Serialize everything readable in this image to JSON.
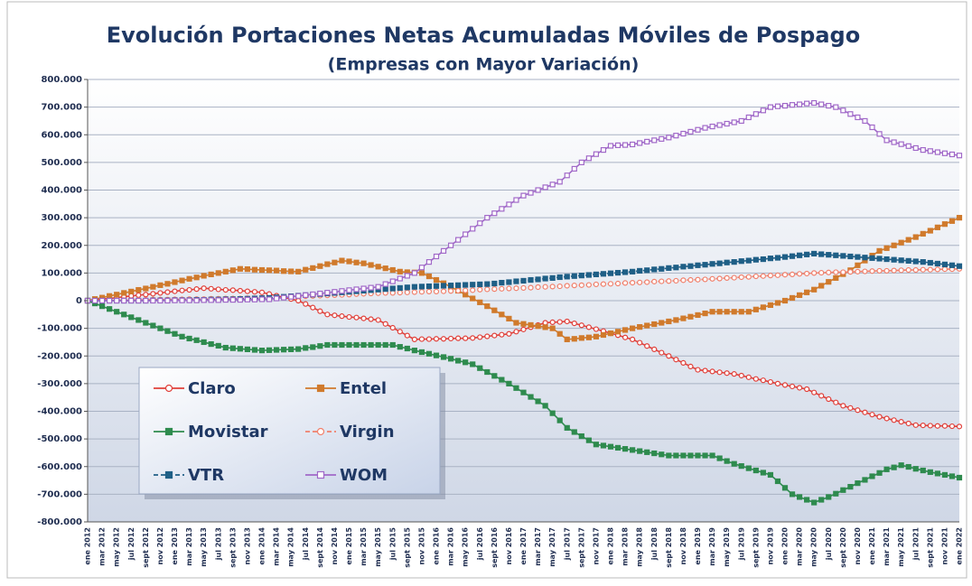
{
  "chart_data": {
    "type": "line",
    "title": "Evolución Portaciones Netas Acumuladas Móviles de Pospago",
    "subtitle": "(Empresas con Mayor Variación)",
    "categories": [
      "ene 2012",
      null,
      "mar 2012",
      null,
      "may 2012",
      null,
      "jul 2012",
      null,
      "sept 2012",
      null,
      "nov 2012",
      null,
      "ene 2013",
      null,
      "mar 2013",
      null,
      "may 2013",
      null,
      "jul 2013",
      null,
      "sept 2013",
      null,
      "nov 2013",
      null,
      "ene 2014",
      null,
      "mar 2014",
      null,
      "may 2014",
      null,
      "jul 2014",
      null,
      "sept 2014",
      null,
      "nov 2014",
      null,
      "ene 2015",
      null,
      "mar 2015",
      null,
      "may 2015",
      null,
      "jul 2015",
      null,
      "sept 2015",
      null,
      "nov 2015",
      null,
      "ene 2016",
      null,
      "mar 2016",
      null,
      "may 2016",
      null,
      "jul 2016",
      null,
      "sept 2016",
      null,
      "nov 2016",
      null,
      "ene 2017",
      null,
      "mar 2017",
      null,
      "may 2017",
      null,
      "jul 2017",
      null,
      "sept 2017",
      null,
      "nov 2017",
      null,
      "ene 2018",
      null,
      "mar 2018",
      null,
      "may 2018",
      null,
      "jul 2018",
      null,
      "sept 2018",
      null,
      "nov 2018",
      null,
      "ene 2019",
      null,
      "mar 2019",
      null,
      "may 2019",
      null,
      "jul 2019",
      null,
      "sept 2019",
      null,
      "nov 2019",
      null,
      "ene 2020",
      null,
      "mar 2020",
      null,
      "may 2020",
      null,
      "jul 2020",
      null,
      "sept 2020",
      null,
      "nov 2020",
      null,
      "ene 2021",
      null,
      "mar 2021",
      null,
      "may 2021",
      null,
      "jul 2021",
      null,
      "sept 2021",
      null,
      "nov 2021",
      null,
      "ene 2022"
    ],
    "ylim": [
      -800000,
      800000
    ],
    "yticks": [
      {
        "value": 800000,
        "label": "800.000"
      },
      {
        "value": 700000,
        "label": "700.000"
      },
      {
        "value": 600000,
        "label": "600.000"
      },
      {
        "value": 500000,
        "label": "500.000"
      },
      {
        "value": 400000,
        "label": "400.000"
      },
      {
        "value": 300000,
        "label": "300.000"
      },
      {
        "value": 200000,
        "label": "200.000"
      },
      {
        "value": 100000,
        "label": "100.000"
      },
      0,
      {
        "value": -100000,
        "label": "-100.000"
      },
      {
        "value": -200000,
        "label": "-200.000"
      },
      {
        "value": -300000,
        "label": "-300.000"
      },
      {
        "value": -400000,
        "label": "-400.000"
      },
      {
        "value": -500000,
        "label": "-500.000"
      },
      {
        "value": -600000,
        "label": "-600.000"
      },
      {
        "value": -700000,
        "label": "-700.000"
      },
      {
        "value": -800000,
        "label": "-800.000"
      }
    ],
    "grid": true,
    "series": [
      {
        "name": "Claro",
        "color": "#e0403a",
        "marker": "open-circle",
        "dash": false,
        "values": [
          0,
          3000,
          6000,
          8000,
          11000,
          14000,
          17000,
          20000,
          22000,
          25000,
          28000,
          31000,
          34000,
          37000,
          39000,
          42000,
          45000,
          43000,
          41000,
          39000,
          38000,
          36000,
          34000,
          32000,
          30000,
          24000,
          18000,
          12000,
          6000,
          0,
          -12000,
          -25000,
          -38000,
          -50000,
          -53000,
          -56000,
          -59000,
          -61000,
          -64000,
          -67000,
          -70000,
          -84000,
          -98000,
          -112000,
          -126000,
          -140000,
          -139000,
          -139000,
          -138000,
          -138000,
          -137000,
          -136000,
          -136000,
          -135000,
          -132000,
          -129000,
          -126000,
          -123000,
          -120000,
          -112000,
          -104000,
          -96000,
          -88000,
          -80000,
          -78000,
          -77000,
          -75000,
          -82000,
          -89000,
          -96000,
          -103000,
          -110000,
          -118000,
          -125000,
          -133000,
          -140000,
          -152000,
          -164000,
          -176000,
          -188000,
          -200000,
          -213000,
          -225000,
          -238000,
          -250000,
          -253000,
          -256000,
          -259000,
          -262000,
          -265000,
          -271000,
          -277000,
          -283000,
          -288000,
          -294000,
          -300000,
          -305000,
          -310000,
          -315000,
          -320000,
          -332000,
          -344000,
          -356000,
          -368000,
          -380000,
          -388000,
          -396000,
          -404000,
          -412000,
          -420000,
          -426000,
          -432000,
          -438000,
          -444000,
          -450000,
          -451000,
          -452000,
          -453000,
          -453000,
          -454000,
          -455000
        ]
      },
      {
        "name": "Entel",
        "color": "#d07a2c",
        "marker": "square",
        "dash": false,
        "values": [
          0,
          6000,
          11000,
          17000,
          22000,
          28000,
          33000,
          39000,
          44000,
          50000,
          56000,
          61000,
          67000,
          73000,
          79000,
          84000,
          90000,
          95000,
          100000,
          105000,
          110000,
          115000,
          114000,
          112000,
          111000,
          110000,
          109000,
          107000,
          106000,
          105000,
          112000,
          118000,
          125000,
          132000,
          138000,
          145000,
          142000,
          138000,
          135000,
          129000,
          123000,
          117000,
          111000,
          105000,
          103000,
          102000,
          100000,
          88000,
          75000,
          63000,
          50000,
          36000,
          22000,
          8000,
          -6000,
          -20000,
          -35000,
          -50000,
          -65000,
          -80000,
          -84000,
          -88000,
          -92000,
          -96000,
          -100000,
          -120000,
          -140000,
          -138000,
          -135000,
          -133000,
          -130000,
          -124000,
          -118000,
          -112000,
          -106000,
          -100000,
          -95000,
          -90000,
          -85000,
          -80000,
          -75000,
          -70000,
          -64000,
          -58000,
          -52000,
          -46000,
          -40000,
          -40000,
          -40000,
          -40000,
          -40000,
          -40000,
          -32000,
          -24000,
          -16000,
          -8000,
          0,
          10000,
          20000,
          30000,
          40000,
          54000,
          68000,
          82000,
          96000,
          110000,
          128000,
          145000,
          163000,
          180000,
          190000,
          200000,
          210000,
          220000,
          230000,
          242000,
          253000,
          265000,
          277000,
          288000,
          300000
        ]
      },
      {
        "name": "Movistar",
        "color": "#2e8b4e",
        "marker": "square",
        "dash": false,
        "values": [
          0,
          -10000,
          -20000,
          -30000,
          -40000,
          -50000,
          -60000,
          -70000,
          -80000,
          -90000,
          -100000,
          -110000,
          -120000,
          -130000,
          -137000,
          -143000,
          -150000,
          -157000,
          -163000,
          -170000,
          -172000,
          -174000,
          -176000,
          -178000,
          -180000,
          -179000,
          -178000,
          -177000,
          -176000,
          -175000,
          -171000,
          -168000,
          -164000,
          -160000,
          -160000,
          -160000,
          -160000,
          -160000,
          -160000,
          -160000,
          -160000,
          -160000,
          -160000,
          -167000,
          -173000,
          -180000,
          -186000,
          -192000,
          -198000,
          -204000,
          -210000,
          -217000,
          -223000,
          -230000,
          -244000,
          -258000,
          -272000,
          -286000,
          -300000,
          -316000,
          -332000,
          -348000,
          -364000,
          -380000,
          -407000,
          -433000,
          -460000,
          -475000,
          -490000,
          -505000,
          -520000,
          -524000,
          -528000,
          -532000,
          -536000,
          -540000,
          -544000,
          -548000,
          -552000,
          -556000,
          -560000,
          -560000,
          -560000,
          -560000,
          -560000,
          -560000,
          -560000,
          -570000,
          -580000,
          -590000,
          -598000,
          -606000,
          -614000,
          -622000,
          -630000,
          -653000,
          -677000,
          -700000,
          -710000,
          -720000,
          -730000,
          -720000,
          -710000,
          -698000,
          -685000,
          -673000,
          -660000,
          -648000,
          -635000,
          -623000,
          -610000,
          -603000,
          -595000,
          -601000,
          -608000,
          -614000,
          -620000,
          -625000,
          -630000,
          -635000,
          -640000
        ]
      },
      {
        "name": "Virgin",
        "color": "#f0806c",
        "marker": "open-circle",
        "dash": true,
        "values": [
          0,
          0,
          1000,
          1000,
          2000,
          2000,
          2000,
          3000,
          3000,
          4000,
          4000,
          4000,
          5000,
          5000,
          6000,
          6000,
          6000,
          7000,
          7000,
          8000,
          8000,
          8000,
          9000,
          9000,
          10000,
          10000,
          11000,
          12000,
          14000,
          15000,
          16000,
          17000,
          18000,
          19000,
          20000,
          21000,
          22000,
          24000,
          25000,
          26000,
          27000,
          28000,
          28000,
          29000,
          30000,
          31000,
          32000,
          33000,
          33000,
          34000,
          35000,
          36000,
          37000,
          38000,
          40000,
          41000,
          42000,
          43000,
          44000,
          45000,
          46000,
          47000,
          49000,
          50000,
          51000,
          52000,
          54000,
          55000,
          56000,
          57000,
          59000,
          60000,
          61000,
          62000,
          64000,
          65000,
          66000,
          67000,
          69000,
          70000,
          71000,
          72000,
          74000,
          75000,
          76000,
          77000,
          79000,
          80000,
          82000,
          83000,
          85000,
          86000,
          88000,
          89000,
          91000,
          92000,
          94000,
          95000,
          97000,
          98000,
          100000,
          101000,
          102000,
          103000,
          103000,
          104000,
          105000,
          106000,
          107000,
          108000,
          108000,
          109000,
          110000,
          111000,
          111000,
          112000,
          112000,
          113000,
          114000,
          114000,
          115000
        ]
      },
      {
        "name": "VTR",
        "color": "#1f5f86",
        "marker": "square",
        "dash": true,
        "values": [
          0,
          0,
          0,
          0,
          0,
          0,
          0,
          0,
          0,
          1000,
          1000,
          1000,
          2000,
          2000,
          2000,
          3000,
          3000,
          4000,
          4000,
          5000,
          5000,
          6000,
          7000,
          8000,
          9000,
          10000,
          12000,
          14000,
          16000,
          18000,
          20000,
          22000,
          24000,
          26000,
          28000,
          30000,
          32000,
          34000,
          36000,
          38000,
          40000,
          42000,
          44000,
          46000,
          48000,
          50000,
          51000,
          52000,
          53000,
          54000,
          55000,
          56000,
          57000,
          58000,
          59000,
          60000,
          62000,
          65000,
          67000,
          70000,
          72000,
          75000,
          77000,
          80000,
          82000,
          85000,
          87000,
          89000,
          91000,
          93000,
          95000,
          97000,
          99000,
          101000,
          103000,
          105000,
          108000,
          110000,
          113000,
          115000,
          118000,
          120000,
          123000,
          125000,
          128000,
          130000,
          133000,
          135000,
          138000,
          140000,
          143000,
          145000,
          148000,
          150000,
          153000,
          155000,
          158000,
          161000,
          164000,
          167000,
          170000,
          168000,
          166000,
          164000,
          162000,
          160000,
          158000,
          156000,
          154000,
          152000,
          150000,
          148000,
          146000,
          144000,
          142000,
          140000,
          137000,
          134000,
          131000,
          128000,
          125000
        ]
      },
      {
        "name": "WOM",
        "color": "#a068c8",
        "marker": "open-square",
        "dash": false,
        "values": [
          0,
          0,
          0,
          0,
          0,
          0,
          0,
          0,
          0,
          0,
          0,
          0,
          1000,
          1000,
          1000,
          1000,
          2000,
          2000,
          2000,
          3000,
          3000,
          3000,
          4000,
          4000,
          5000,
          5000,
          8000,
          11000,
          14000,
          17000,
          20000,
          23000,
          26000,
          29000,
          32000,
          35000,
          38000,
          41000,
          44000,
          47000,
          50000,
          60000,
          70000,
          80000,
          90000,
          100000,
          120000,
          140000,
          160000,
          180000,
          200000,
          220000,
          240000,
          260000,
          280000,
          300000,
          316000,
          332000,
          348000,
          364000,
          380000,
          390000,
          400000,
          410000,
          420000,
          430000,
          453000,
          477000,
          500000,
          515000,
          530000,
          545000,
          560000,
          562000,
          563000,
          565000,
          570000,
          575000,
          580000,
          585000,
          590000,
          597000,
          604000,
          611000,
          618000,
          625000,
          630000,
          635000,
          640000,
          645000,
          650000,
          663000,
          675000,
          688000,
          700000,
          703000,
          705000,
          708000,
          710000,
          713000,
          715000,
          710000,
          705000,
          700000,
          688000,
          675000,
          663000,
          650000,
          627000,
          603000,
          580000,
          573000,
          566000,
          559000,
          552000,
          545000,
          541000,
          537000,
          533000,
          529000,
          525000
        ]
      }
    ]
  }
}
